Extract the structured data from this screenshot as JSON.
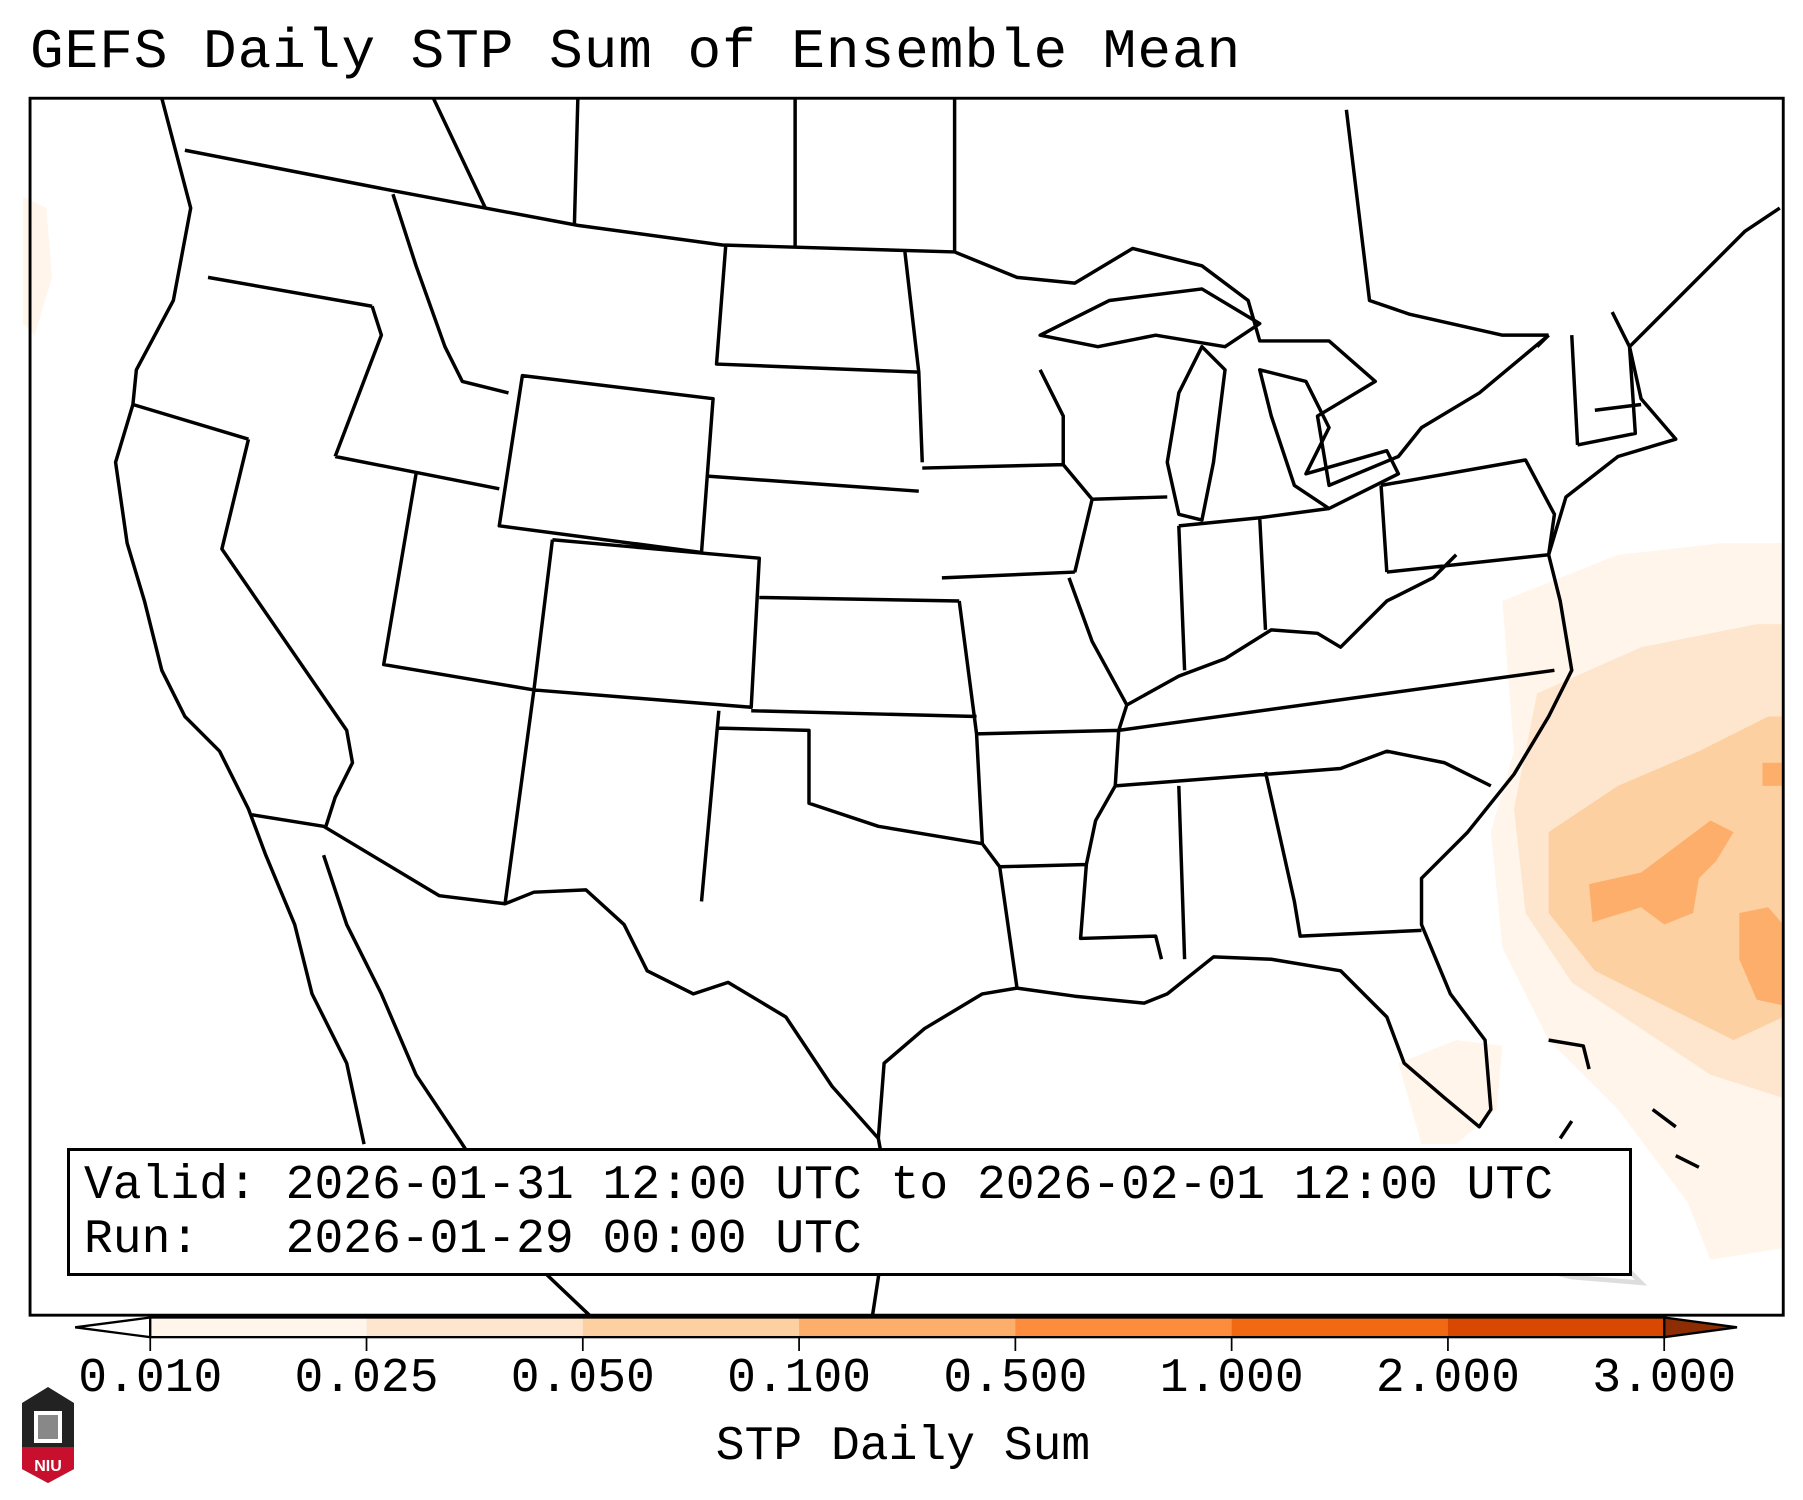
{
  "title": "GEFS Daily STP Sum of Ensemble Mean",
  "info": {
    "valid_line": "Valid: 2026-01-31 12:00 UTC to 2026-02-01 12:00 UTC",
    "run_line": "Run:   2026-01-29 00:00 UTC"
  },
  "colorbar": {
    "label": "STP Daily Sum",
    "ticks": [
      "0.010",
      "0.025",
      "0.050",
      "0.100",
      "0.500",
      "1.000",
      "2.000",
      "3.000"
    ],
    "colors": [
      "#fff5eb",
      "#fee6ce",
      "#fdd0a2",
      "#fdae6b",
      "#fd8d3c",
      "#f16913",
      "#d94801"
    ],
    "under_color": "#ffffff",
    "over_color": "#8c2d04"
  },
  "logo": {
    "text": "NIU"
  }
}
